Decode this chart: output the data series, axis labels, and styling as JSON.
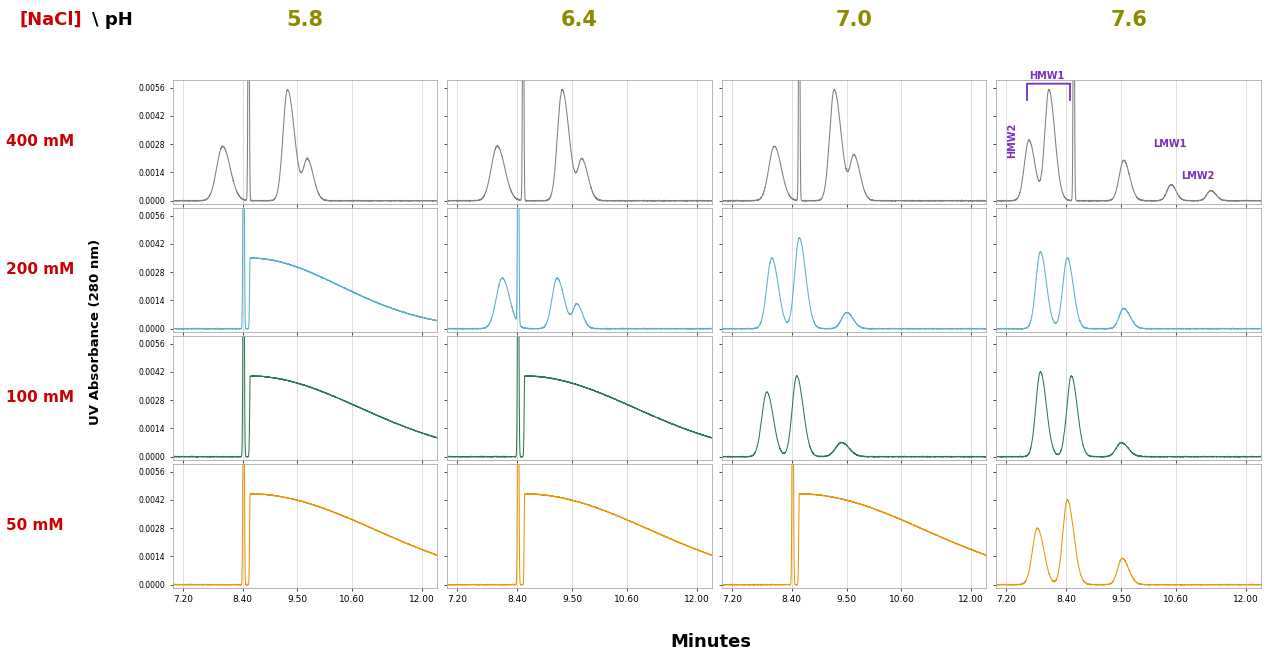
{
  "ph_values": [
    "5.8",
    "6.4",
    "7.0",
    "7.6"
  ],
  "nacl_values": [
    "400 mM",
    "200 mM",
    "100 mM",
    "50 mM"
  ],
  "ylabel": "UV Absorbance (280 nm)",
  "xlabel": "Minutes",
  "ph_color": "#8B8B00",
  "nacl_color": "#cc0000",
  "colors": {
    "0": "#808080",
    "1": "#5aafcc",
    "2": "#2d7a50",
    "3": "#e8960a"
  },
  "xmin": 7.0,
  "xmax": 12.3,
  "ymin": -0.00015,
  "ymax": 0.006,
  "yticks": [
    0.0,
    0.0014,
    0.0028,
    0.0042,
    0.0056
  ],
  "ytick_labels": [
    "0.0000",
    "0.0014",
    "0.0028",
    "0.0042",
    "0.0056"
  ],
  "xticks": [
    7.2,
    8.4,
    9.5,
    10.6,
    12.0
  ],
  "xtick_labels": [
    "7.20",
    "8.40",
    "9.50",
    "10.60",
    "12.00"
  ],
  "annotation_color": "#7B2FBE",
  "background_color": "#ffffff"
}
